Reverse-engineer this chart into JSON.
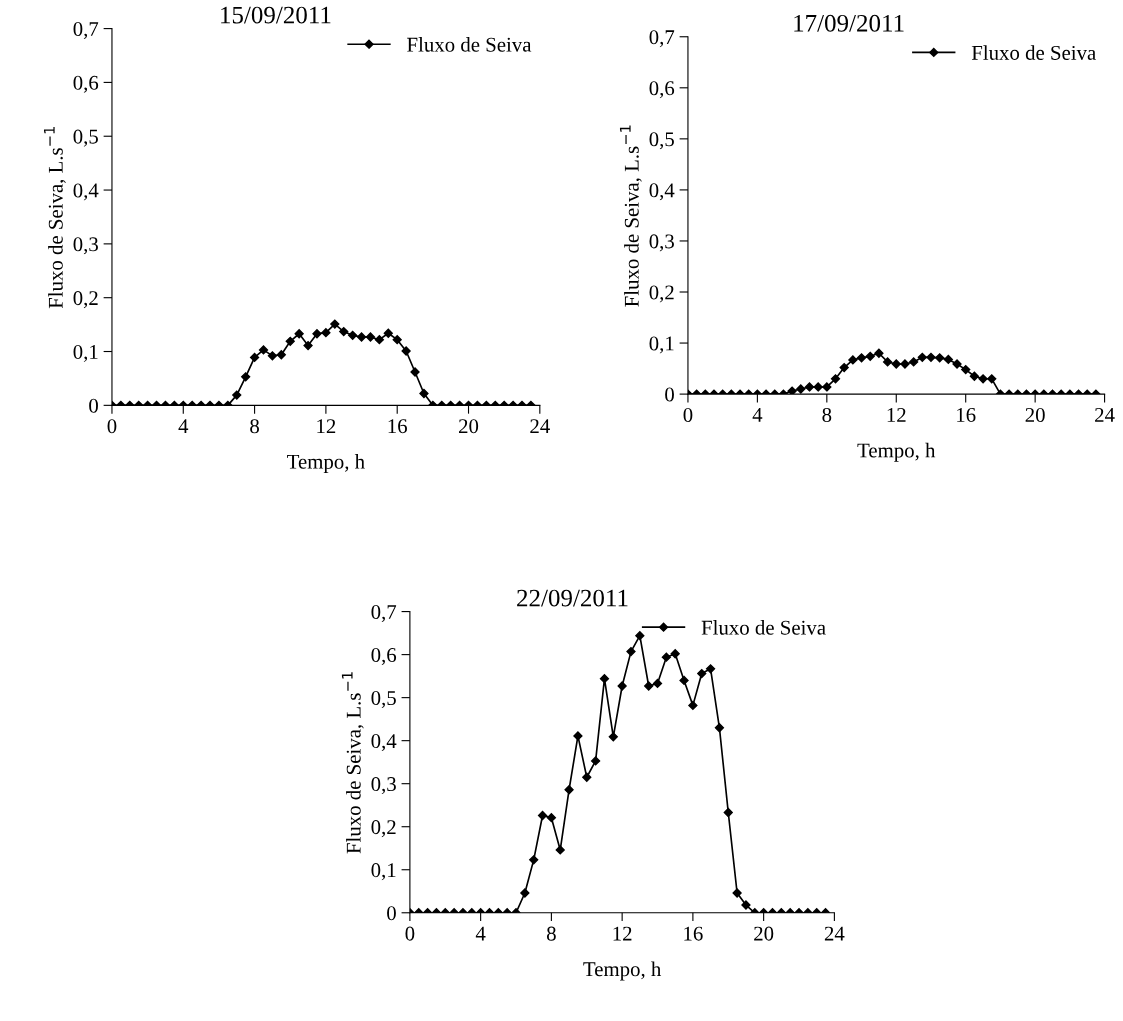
{
  "chart_data": [
    {
      "type": "line",
      "title": "15/09/2011",
      "xlabel": "Tempo, h",
      "ylabel": "Fluxo de Seiva, L.s$^{−1}$",
      "x": [
        0,
        0.5,
        1,
        1.5,
        2,
        2.5,
        3,
        3.5,
        4,
        4.5,
        5,
        5.5,
        6,
        6.5,
        7,
        7.5,
        8,
        8.5,
        9,
        9.5,
        10,
        10.5,
        11,
        11.5,
        12,
        12.5,
        13,
        13.5,
        14,
        14.5,
        15,
        15.5,
        16,
        16.5,
        17,
        17.5,
        18,
        18.5,
        19,
        19.5,
        20,
        20.5,
        21,
        21.5,
        22,
        22.5,
        23,
        23.5
      ],
      "series": [
        {
          "name": "Fluxo de Seiva",
          "color": "#000000",
          "values": [
            0,
            0,
            0,
            0,
            0,
            0,
            0,
            0,
            0,
            0,
            0,
            0,
            0,
            0,
            0.019,
            0.053,
            0.089,
            0.103,
            0.092,
            0.094,
            0.119,
            0.133,
            0.111,
            0.133,
            0.135,
            0.151,
            0.137,
            0.13,
            0.127,
            0.127,
            0.122,
            0.134,
            0.122,
            0.101,
            0.062,
            0.022,
            0,
            0,
            0,
            0,
            0,
            0,
            0,
            0,
            0,
            0,
            0,
            0
          ]
        }
      ],
      "xlim": [
        0,
        24
      ],
      "xticks": [
        0,
        4,
        8,
        12,
        16,
        20,
        24
      ],
      "ylim": [
        0,
        0.7
      ],
      "yticks": [
        0,
        {
          "value": 0.1,
          "label": "0,1"
        },
        {
          "value": 0.2,
          "label": "0,2"
        },
        {
          "value": 0.3,
          "label": "0,3"
        },
        {
          "value": 0.4,
          "label": "0,4"
        },
        {
          "value": 0.5,
          "label": "0,5"
        },
        {
          "value": 0.6,
          "label": "0,6"
        },
        {
          "value": 0.7,
          "label": "0,7"
        }
      ],
      "marker": "diamond",
      "line_style": "solid",
      "legend": "top right",
      "grid": false
    },
    {
      "type": "line",
      "title": "17/09/2011",
      "xlabel": "Tempo, h",
      "ylabel": "Fluxo de Seiva, L.s$^{−1}$",
      "x": [
        0,
        0.5,
        1,
        1.5,
        2,
        2.5,
        3,
        3.5,
        4,
        4.5,
        5,
        5.5,
        6,
        6.5,
        7,
        7.5,
        8,
        8.5,
        9,
        9.5,
        10,
        10.5,
        11,
        11.5,
        12,
        12.5,
        13,
        13.5,
        14,
        14.5,
        15,
        15.5,
        16,
        16.5,
        17,
        17.5,
        18,
        18.5,
        19,
        19.5,
        20,
        20.5,
        21,
        21.5,
        22,
        22.5,
        23,
        23.5
      ],
      "series": [
        {
          "name": "Fluxo de Seiva",
          "color": "#000000",
          "values": [
            0,
            0,
            0,
            0,
            0,
            0,
            0,
            0,
            0,
            0,
            0,
            0,
            0.006,
            0.01,
            0.014,
            0.014,
            0.014,
            0.03,
            0.052,
            0.067,
            0.071,
            0.074,
            0.08,
            0.063,
            0.059,
            0.059,
            0.063,
            0.072,
            0.072,
            0.071,
            0.068,
            0.059,
            0.048,
            0.035,
            0.03,
            0.03,
            0,
            0,
            0,
            0,
            0,
            0,
            0,
            0,
            0,
            0,
            0,
            0
          ]
        }
      ],
      "xlim": [
        0,
        24
      ],
      "xticks": [
        0,
        4,
        8,
        12,
        16,
        20,
        24
      ],
      "ylim": [
        0,
        0.7
      ],
      "yticks": [
        0,
        {
          "value": 0.1,
          "label": "0,1"
        },
        {
          "value": 0.2,
          "label": "0,2"
        },
        {
          "value": 0.3,
          "label": "0,3"
        },
        {
          "value": 0.4,
          "label": "0,4"
        },
        {
          "value": 0.5,
          "label": "0,5"
        },
        {
          "value": 0.6,
          "label": "0,6"
        },
        {
          "value": 0.7,
          "label": "0,7"
        }
      ],
      "marker": "diamond",
      "line_style": "solid",
      "legend": "top right",
      "grid": false
    },
    {
      "type": "line",
      "title": "22/09/2011",
      "xlabel": "Tempo, h",
      "ylabel": "Fluxo de Seiva, L.s$^{−1}$",
      "x": [
        0,
        0.5,
        1,
        1.5,
        2,
        2.5,
        3,
        3.5,
        4,
        4.5,
        5,
        5.5,
        6,
        6.5,
        7,
        7.5,
        8,
        8.5,
        9,
        9.5,
        10,
        10.5,
        11,
        11.5,
        12,
        12.5,
        13,
        13.5,
        14,
        14.5,
        15,
        15.5,
        16,
        16.5,
        17,
        17.5,
        18,
        18.5,
        19,
        19.5,
        20,
        20.5,
        21,
        21.5,
        22,
        22.5,
        23,
        23.5
      ],
      "series": [
        {
          "name": "Fluxo de Seiva",
          "color": "#000000",
          "values": [
            0,
            0,
            0,
            0,
            0,
            0,
            0,
            0,
            0,
            0,
            0,
            0,
            0,
            0.046,
            0.123,
            0.226,
            0.221,
            0.146,
            0.286,
            0.411,
            0.315,
            0.353,
            0.544,
            0.409,
            0.527,
            0.607,
            0.644,
            0.527,
            0.533,
            0.594,
            0.602,
            0.54,
            0.482,
            0.556,
            0.567,
            0.43,
            0.233,
            0.046,
            0.018,
            0,
            0,
            0,
            0,
            0,
            0,
            0,
            0,
            0
          ]
        }
      ],
      "xlim": [
        0,
        24
      ],
      "xticks": [
        0,
        4,
        8,
        12,
        16,
        20,
        24
      ],
      "ylim": [
        0,
        0.7
      ],
      "yticks": [
        0,
        {
          "value": 0.1,
          "label": "0,1"
        },
        {
          "value": 0.2,
          "label": "0,2"
        },
        {
          "value": 0.3,
          "label": "0,3"
        },
        {
          "value": 0.4,
          "label": "0,4"
        },
        {
          "value": 0.5,
          "label": "0,5"
        },
        {
          "value": 0.6,
          "label": "0,6"
        },
        {
          "value": 0.7,
          "label": "0,7"
        }
      ],
      "marker": "diamond",
      "line_style": "solid",
      "legend": "top right",
      "grid": false
    }
  ]
}
